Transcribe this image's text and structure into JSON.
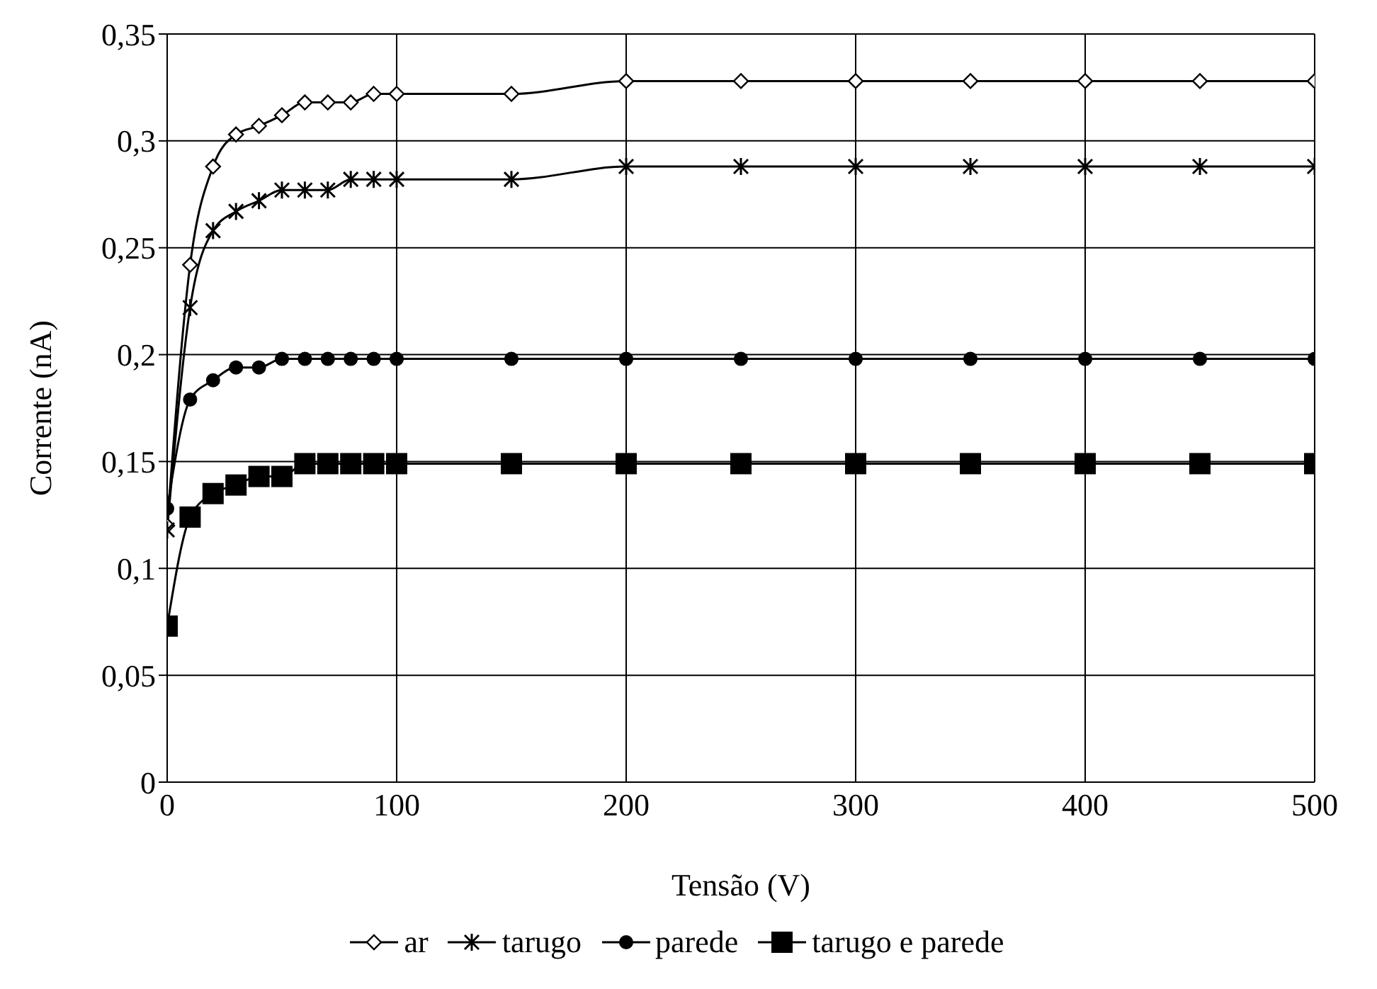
{
  "chart_data": {
    "type": "line",
    "xlabel": "Tensão (V)",
    "ylabel": "Corrente (nA)",
    "x": [
      0,
      10,
      20,
      30,
      40,
      50,
      60,
      70,
      80,
      90,
      100,
      150,
      200,
      250,
      300,
      350,
      400,
      450,
      500
    ],
    "series": [
      {
        "name": "ar",
        "color": "#000000",
        "marker": "diamond",
        "values": [
          0.12,
          0.242,
          0.288,
          0.303,
          0.307,
          0.312,
          0.318,
          0.318,
          0.318,
          0.322,
          0.322,
          0.322,
          0.328,
          0.328,
          0.328,
          0.328,
          0.328,
          0.328,
          0.328
        ]
      },
      {
        "name": "tarugo",
        "color": "#000000",
        "marker": "cross",
        "values": [
          0.118,
          0.222,
          0.258,
          0.267,
          0.272,
          0.277,
          0.277,
          0.277,
          0.282,
          0.282,
          0.282,
          0.282,
          0.288,
          0.288,
          0.288,
          0.288,
          0.288,
          0.288,
          0.288
        ]
      },
      {
        "name": "parede",
        "color": "#000000",
        "marker": "circle",
        "values": [
          0.128,
          0.179,
          0.188,
          0.194,
          0.194,
          0.198,
          0.198,
          0.198,
          0.198,
          0.198,
          0.198,
          0.198,
          0.198,
          0.198,
          0.198,
          0.198,
          0.198,
          0.198,
          0.198
        ]
      },
      {
        "name": "tarugo e parede",
        "color": "#000000",
        "marker": "square",
        "values": [
          0.073,
          0.124,
          0.135,
          0.139,
          0.143,
          0.143,
          0.149,
          0.149,
          0.149,
          0.149,
          0.149,
          0.149,
          0.149,
          0.149,
          0.149,
          0.149,
          0.149,
          0.149,
          0.149
        ]
      }
    ],
    "xlim": [
      0,
      500
    ],
    "xticks": [
      0,
      100,
      200,
      300,
      400,
      500
    ],
    "ylim": [
      0,
      0.35
    ],
    "yticks": [
      {
        "value": 0,
        "label": "0"
      },
      {
        "value": 0.05,
        "label": "0,05"
      },
      {
        "value": 0.1,
        "label": "0,1"
      },
      {
        "value": 0.15,
        "label": "0,15"
      },
      {
        "value": 0.2,
        "label": "0,2"
      },
      {
        "value": 0.25,
        "label": "0,25"
      },
      {
        "value": 0.3,
        "label": "0,3"
      },
      {
        "value": 0.35,
        "label": "0,35"
      }
    ],
    "grid": true,
    "legend": "bottom",
    "line_style": "solid"
  }
}
